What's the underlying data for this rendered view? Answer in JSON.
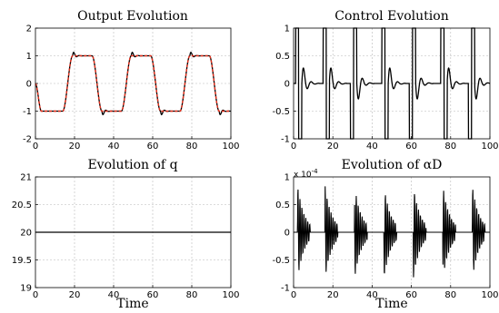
{
  "chart_data": [
    {
      "id": "output",
      "type": "line",
      "title": "Output Evolution",
      "xlabel": "",
      "xlim": [
        0,
        100
      ],
      "ylim": [
        -2,
        2
      ],
      "xticks": [
        "0",
        "20",
        "40",
        "60",
        "80",
        "100"
      ],
      "yticks": [
        "-2",
        "-1",
        "0",
        "1",
        "2"
      ],
      "grid": true,
      "series": [
        {
          "style": "black-solid",
          "color": "#000000",
          "kind": "output",
          "x": [
            0,
            100
          ]
        },
        {
          "style": "red-dashed",
          "color": "#e8301c",
          "kind": "reference",
          "x": [
            0,
            100
          ]
        }
      ]
    },
    {
      "id": "control",
      "type": "line",
      "title": "Control Evolution",
      "xlabel": "",
      "xlim": [
        0,
        100
      ],
      "ylim": [
        -1,
        1
      ],
      "xticks": [
        "0",
        "20",
        "40",
        "60",
        "80",
        "100"
      ],
      "yticks": [
        "-1",
        "-0.5",
        "0",
        "0.5",
        "1"
      ],
      "grid": true,
      "series": [
        {
          "style": "black-solid",
          "color": "#000000",
          "kind": "control",
          "x": [
            0,
            100
          ]
        }
      ]
    },
    {
      "id": "q",
      "type": "line",
      "title": "Evolution of q",
      "xlabel": "Time",
      "xlim": [
        0,
        100
      ],
      "ylim": [
        19,
        21
      ],
      "xticks": [
        "0",
        "20",
        "40",
        "60",
        "80",
        "100"
      ],
      "yticks": [
        "19",
        "19.5",
        "20",
        "20.5",
        "21"
      ],
      "grid": true,
      "series": [
        {
          "style": "black-solid",
          "color": "#000000",
          "kind": "constant",
          "x": [
            0,
            100
          ],
          "y": [
            20,
            20
          ]
        }
      ]
    },
    {
      "id": "alpha",
      "type": "line",
      "title": "Evolution of αD",
      "xlabel": "Time",
      "xlim": [
        0,
        100
      ],
      "ylim": [
        -1,
        1
      ],
      "xticks": [
        "0",
        "20",
        "40",
        "60",
        "80",
        "100"
      ],
      "yticks": [
        "-1",
        "-0.5",
        "0",
        "0.5",
        "1"
      ],
      "multiplier": "x 10",
      "multiplier_exp": "-4",
      "grid": true,
      "series": [
        {
          "style": "black-solid",
          "color": "#000000",
          "kind": "alpha",
          "x": [
            0,
            100
          ]
        }
      ]
    }
  ]
}
